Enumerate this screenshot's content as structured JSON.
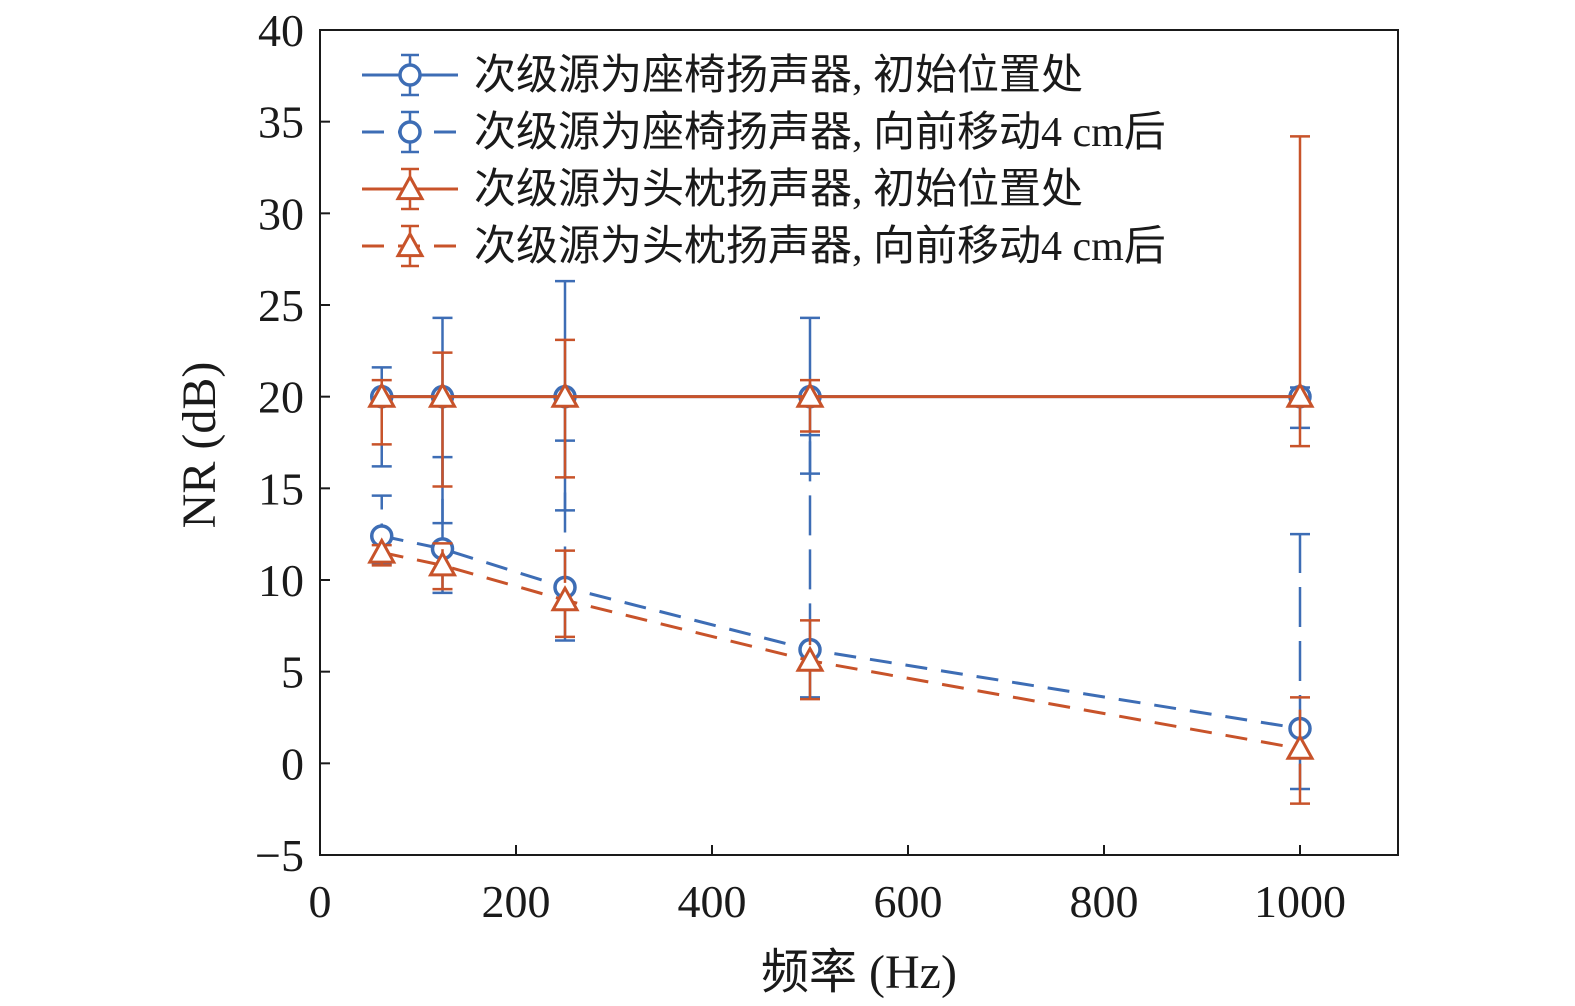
{
  "chart_data": {
    "type": "line",
    "title": "",
    "xlabel": "频率 (Hz)",
    "ylabel": "NR (dB)",
    "xlim": [
      0,
      1100
    ],
    "ylim": [
      -5,
      40
    ],
    "xticks": [
      0,
      200,
      400,
      600,
      800,
      1000
    ],
    "yticks": [
      -5,
      0,
      5,
      10,
      15,
      20,
      25,
      30,
      35,
      40
    ],
    "x_tick_labels": [
      "0",
      "200",
      "400",
      "600",
      "800",
      "1000"
    ],
    "y_tick_labels": [
      "−5",
      "0",
      "5",
      "10",
      "15",
      "20",
      "25",
      "30",
      "35",
      "40"
    ],
    "grid": false,
    "legend_position": "top",
    "x": [
      63,
      125,
      250,
      500,
      1000
    ],
    "series": [
      {
        "name": "次级源为座椅扬声器, 初始位置处",
        "color": "#3d6db5",
        "line_style": "solid",
        "marker": "circle",
        "values": [
          20,
          20,
          20,
          20,
          20
        ],
        "err_low": [
          16.2,
          13.1,
          13.8,
          15.8,
          18.3
        ],
        "err_high": [
          21.6,
          24.3,
          26.3,
          24.3,
          20.5
        ]
      },
      {
        "name": "次级源为座椅扬声器, 向前移动4 cm后",
        "color": "#3d6db5",
        "line_style": "dashed",
        "marker": "circle",
        "values": [
          12.4,
          11.7,
          9.6,
          6.2,
          1.9
        ],
        "err_low": [
          10.9,
          9.3,
          6.7,
          3.6,
          -1.4
        ],
        "err_high": [
          14.6,
          16.7,
          17.6,
          17.9,
          12.5
        ]
      },
      {
        "name": "次级源为头枕扬声器, 初始位置处",
        "color": "#c8532a",
        "line_style": "solid",
        "marker": "triangle",
        "values": [
          20,
          20,
          20,
          20,
          20
        ],
        "err_low": [
          17.4,
          15.1,
          15.6,
          18.1,
          17.3
        ],
        "err_high": [
          20.9,
          22.4,
          23.1,
          20.9,
          34.2
        ]
      },
      {
        "name": "次级源为头枕扬声器, 向前移动4 cm后",
        "color": "#c8532a",
        "line_style": "dashed",
        "marker": "triangle",
        "values": [
          11.5,
          10.8,
          8.9,
          5.6,
          0.8
        ],
        "err_low": [
          10.8,
          9.5,
          6.9,
          3.5,
          -2.2
        ],
        "err_high": [
          11.9,
          12.0,
          11.6,
          7.8,
          3.6
        ]
      }
    ]
  }
}
